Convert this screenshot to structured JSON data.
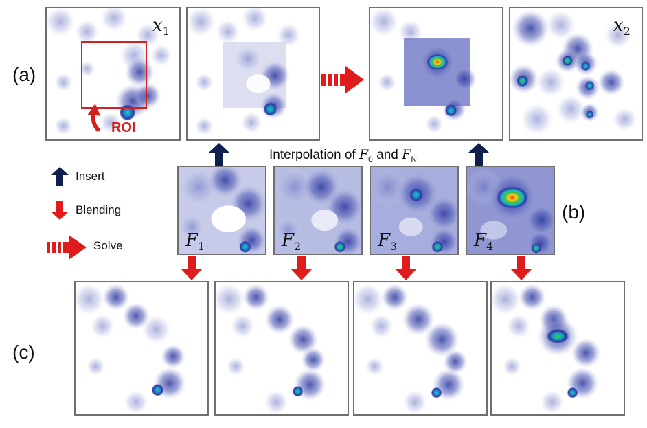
{
  "row_labels": {
    "a": "(a)",
    "b": "(b)",
    "c": "(c)"
  },
  "panel_labels": {
    "x1": {
      "var": "x",
      "sub": "1"
    },
    "x2": {
      "var": "x",
      "sub": "2"
    },
    "frames": [
      {
        "var": "F",
        "sub": "1"
      },
      {
        "var": "F",
        "sub": "2"
      },
      {
        "var": "F",
        "sub": "3"
      },
      {
        "var": "F",
        "sub": "4"
      }
    ]
  },
  "roi_label": "ROI",
  "interpolation": {
    "prefix": "Interpolation of ",
    "a_var": "F",
    "a_sub": "0",
    "middle": " and ",
    "b_var": "F",
    "b_sub": "N"
  },
  "legend": {
    "insert": "Insert",
    "blending": "Blending",
    "solve": "Solve"
  },
  "colors": {
    "insert_arrow": "#0e1f4d",
    "blend_arrow": "#e01b1b",
    "roi": "#d62020",
    "panel_border": "#6f6f6f"
  }
}
